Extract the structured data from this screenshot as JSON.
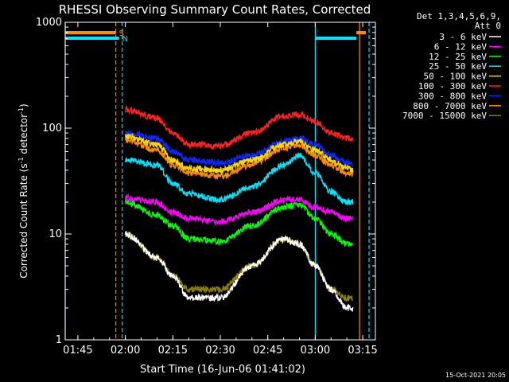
{
  "chart_data": {
    "type": "line",
    "title": "RHESSI Observing Summary Count Rates, Corrected",
    "xlabel": "Start Time (16-Jun-06 01:41:02)",
    "ylabel_main": "Corrected Count Rate (s",
    "ylabel_sup1": "-1",
    "ylabel_mid": " detector",
    "ylabel_sup2": "-1",
    "ylabel_end": ")",
    "ylim": [
      1,
      1000
    ],
    "yscale": "log",
    "xlim": [
      "01:41",
      "03:19"
    ],
    "x_ticks": [
      "01:45",
      "02:00",
      "02:15",
      "02:30",
      "02:45",
      "03:00",
      "03:15"
    ],
    "y_ticks": [
      "1",
      "10",
      "100",
      "1000"
    ],
    "legend_header": [
      "Det 1,3,4,5,6,9,",
      "Att 0"
    ],
    "legend_placement": "outside-right",
    "footer_date": "15-Oct-2021 20:05",
    "flags": [
      {
        "label": "S",
        "color": "#ff8c00",
        "segments": [
          [
            "01:41",
            "01:57"
          ],
          [
            "03:13",
            "03:16"
          ]
        ]
      },
      {
        "label": "N",
        "color": "#00e5ff",
        "segments": [
          [
            "01:41",
            "01:58"
          ],
          [
            "03:00",
            "03:13"
          ]
        ]
      }
    ],
    "vertical_lines": [
      {
        "x": "01:41",
        "color": "#00e5ff",
        "style": "solid"
      },
      {
        "x": "01:57",
        "color": "#ff8c00",
        "style": "dashed"
      },
      {
        "x": "01:59",
        "color": "#00e5ff",
        "style": "dashed"
      },
      {
        "x": "03:00",
        "color": "#00e5ff",
        "style": "solid"
      },
      {
        "x": "03:14",
        "color": "#ff8c00",
        "style": "solid"
      },
      {
        "x": "03:17",
        "color": "#00e5ff",
        "style": "dashed"
      }
    ],
    "x": [
      "02:00",
      "02:10",
      "02:15",
      "02:20",
      "02:30",
      "02:40",
      "02:50",
      "02:55",
      "03:00",
      "03:05",
      "03:10",
      "03:12"
    ],
    "series": [
      {
        "name": "3 - 6 keV",
        "color": "#ffffff",
        "values": [
          10,
          6,
          4,
          2.5,
          2.5,
          5,
          9,
          8,
          5,
          3,
          2,
          2
        ]
      },
      {
        "name": "6 - 12 keV",
        "color": "#ff00ff",
        "values": [
          22,
          20,
          16,
          14,
          13,
          16,
          21,
          21,
          18,
          16,
          14,
          14
        ]
      },
      {
        "name": "12 - 25 keV",
        "color": "#00ff00",
        "values": [
          20,
          15,
          12,
          9,
          8.5,
          12,
          18,
          19,
          14,
          10,
          8,
          8
        ]
      },
      {
        "name": "25 - 50 keV",
        "color": "#00e5ff",
        "values": [
          50,
          45,
          30,
          24,
          21,
          28,
          45,
          55,
          38,
          25,
          20,
          20
        ]
      },
      {
        "name": "50 - 100 keV",
        "color": "#ffd700",
        "values": [
          85,
          70,
          50,
          42,
          40,
          50,
          70,
          75,
          62,
          50,
          42,
          40
        ]
      },
      {
        "name": "100 - 300 keV",
        "color": "#ff2020",
        "values": [
          150,
          125,
          90,
          70,
          68,
          90,
          130,
          135,
          115,
          90,
          80,
          80
        ]
      },
      {
        "name": "300 - 800 keV",
        "color": "#0a28ff",
        "values": [
          90,
          80,
          60,
          50,
          47,
          55,
          75,
          80,
          70,
          55,
          47,
          45
        ]
      },
      {
        "name": "800 - 7000 keV",
        "color": "#ff8c00",
        "values": [
          78,
          62,
          45,
          38,
          35,
          45,
          65,
          70,
          55,
          45,
          38,
          37
        ]
      },
      {
        "name": "7000 - 15000 keV",
        "color": "#8b7d00",
        "values": [
          10,
          6,
          4,
          3,
          3,
          5,
          9,
          8,
          5,
          3,
          2.5,
          2.5
        ]
      }
    ]
  }
}
